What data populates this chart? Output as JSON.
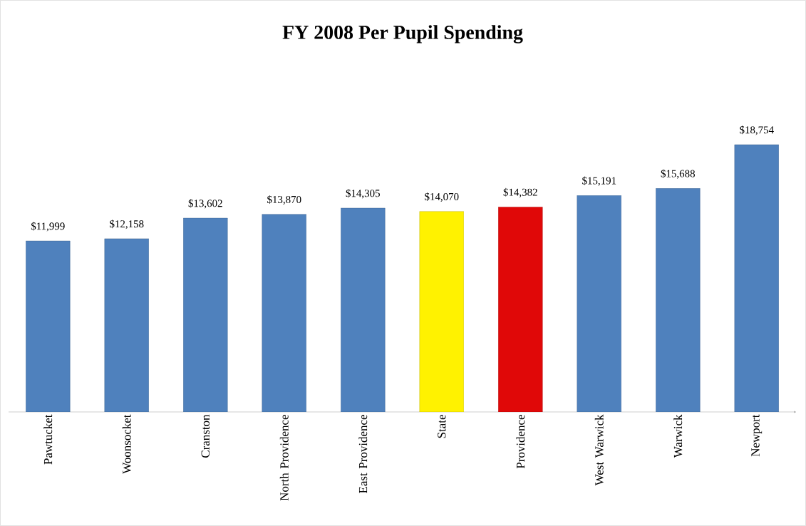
{
  "chart_data": {
    "type": "bar",
    "title": "FY 2008 Per Pupil Spending",
    "categories": [
      "Pawtucket",
      "Woonsocket",
      "Cranston",
      "North Providence",
      "East Providence",
      "State",
      "Providence",
      "West Warwick",
      "Warwick",
      "Newport"
    ],
    "values": [
      11999,
      12158,
      13602,
      13870,
      14305,
      14070,
      14382,
      15191,
      15688,
      18754
    ],
    "value_labels": [
      "$11,999",
      "$12,158",
      "$13,602",
      "$13,870",
      "$14,305",
      "$14,070",
      "$14,382",
      "$15,191",
      "$15,688",
      "$18,754"
    ],
    "colors": [
      "#4f81bd",
      "#4f81bd",
      "#4f81bd",
      "#4f81bd",
      "#4f81bd",
      "#fff200",
      "#e00808",
      "#4f81bd",
      "#4f81bd",
      "#4f81bd"
    ]
  }
}
